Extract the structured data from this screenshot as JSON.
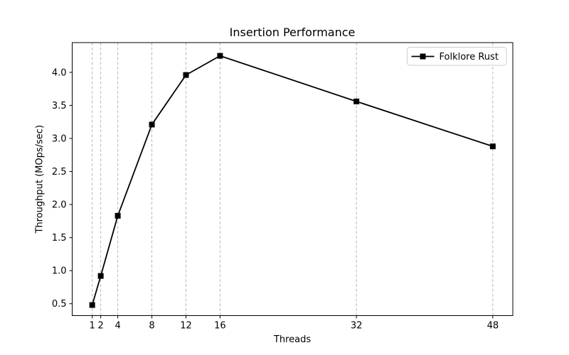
{
  "chart_data": {
    "type": "line",
    "title": "Insertion Performance",
    "xlabel": "Threads",
    "ylabel": "Throughput (MOps/sec)",
    "series": [
      {
        "name": "Folklore Rust",
        "x": [
          1,
          2,
          4,
          8,
          12,
          16,
          32,
          48
        ],
        "values": [
          0.48,
          0.92,
          1.83,
          3.21,
          3.96,
          4.25,
          3.56,
          2.88
        ],
        "color": "#000000",
        "marker": "square",
        "line_style": "solid"
      }
    ],
    "x_ticks": [
      1,
      2,
      4,
      8,
      12,
      16,
      32,
      48
    ],
    "x_tick_labels": [
      "1",
      "2",
      "4",
      "8",
      "12",
      "16",
      "32",
      "48"
    ],
    "y_ticks": [
      0.5,
      1.0,
      1.5,
      2.0,
      2.5,
      3.0,
      3.5,
      4.0
    ],
    "y_tick_labels": [
      "0.5",
      "1.0",
      "1.5",
      "2.0",
      "2.5",
      "3.0",
      "3.5",
      "4.0"
    ],
    "xlim": [
      -1.35,
      50.35
    ],
    "ylim": [
      0.32,
      4.45
    ],
    "grid": "vertical-dashed",
    "grid_color": "#b0b0b0",
    "spine_color": "#000000",
    "legend_position": "upper right",
    "legend_border_color": "#cccccc",
    "background": "#ffffff"
  }
}
